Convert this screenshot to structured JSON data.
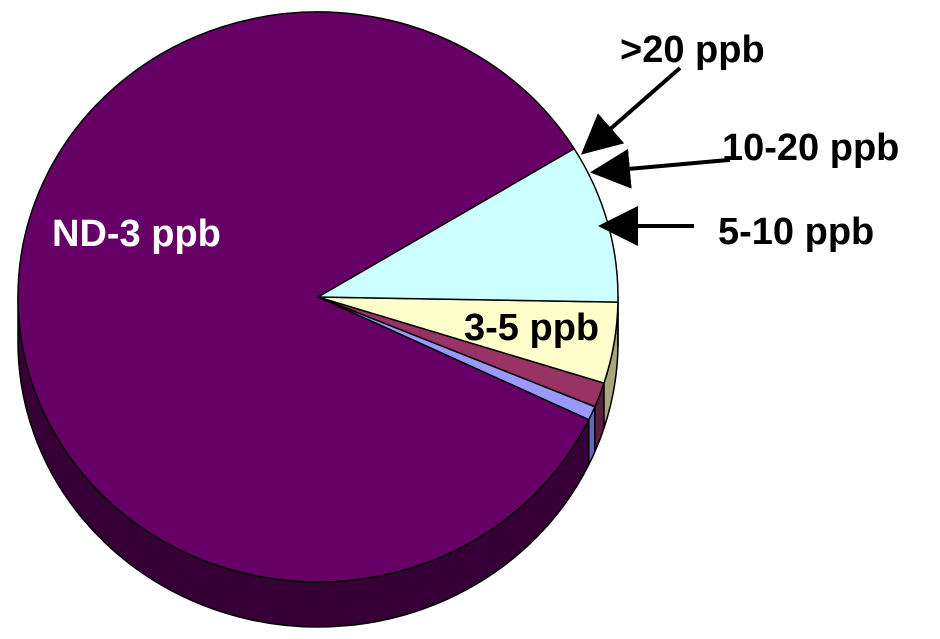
{
  "chart_data": {
    "type": "pie",
    "style": "3d",
    "title": "",
    "categories": [
      ">20 ppb",
      "10-20 ppb",
      "5-10 ppb",
      "3-5 ppb",
      "ND-3 ppb"
    ],
    "values": [
      0.8,
      1.4,
      4.6,
      9.0,
      84.2
    ],
    "unit": "percent",
    "colors": [
      "#9999FF",
      "#993366",
      "#FFFFCC",
      "#CCFFFF",
      "#660066"
    ],
    "edge_colors": [
      "#6666BB",
      "#5C1F3D",
      "#A6A680",
      "#5C8C8C",
      "#360036"
    ],
    "label_colors": [
      "#000000",
      "#000000",
      "#000000",
      "#000000",
      "#FFFFFF"
    ],
    "legend": "none"
  }
}
